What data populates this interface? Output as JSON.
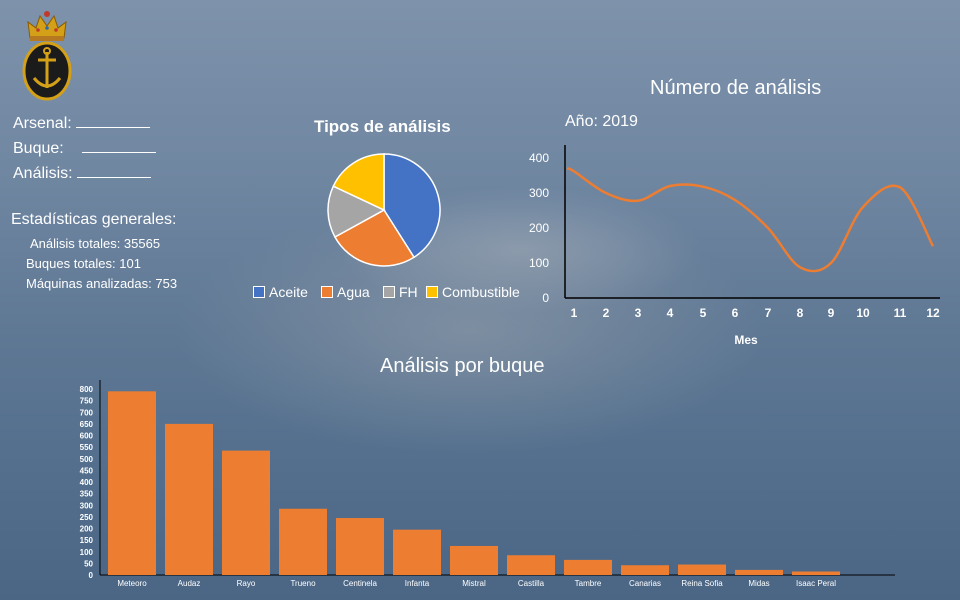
{
  "form": {
    "arsenal_label": "Arsenal:",
    "buque_label": "Buque:",
    "analisis_label": "Análisis:"
  },
  "stats": {
    "heading": "Estadísticas generales:",
    "total_analisis": "Análisis totales: 35565",
    "total_buques": "Buques totales: 101",
    "maquinas": "Máquinas analizadas: 753"
  },
  "colors": {
    "blue": "#4472C4",
    "orange": "#ED7D31",
    "gray": "#A5A5A5",
    "yellow": "#FFC000",
    "bar": "#ED7D31"
  },
  "chart_data": [
    {
      "type": "pie",
      "title": "Tipos de análisis",
      "categories": [
        "Aceite",
        "Agua",
        "FH",
        "Combustible"
      ],
      "values": [
        41,
        26,
        15,
        18
      ]
    },
    {
      "type": "line",
      "title": "Número de análisis",
      "subtitle": "Año: 2019",
      "xlabel": "Mes",
      "ylabel": "",
      "x": [
        1,
        2,
        3,
        4,
        5,
        6,
        7,
        8,
        9,
        10,
        11,
        12
      ],
      "series": [
        {
          "values": [
            362,
            300,
            278,
            320,
            318,
            280,
            200,
            88,
            100,
            260,
            316,
            148
          ]
        }
      ],
      "ylim": [
        0,
        400
      ],
      "yticks": [
        0,
        100,
        200,
        300,
        400
      ],
      "grid": false
    },
    {
      "type": "bar",
      "title": "Análisis por buque",
      "categories": [
        "Meteoro",
        "Audaz",
        "Rayo",
        "Trueno",
        "Centinela",
        "Infanta",
        "Mistral",
        "Castilla",
        "Tambre",
        "Canarias",
        "Reina Sofia",
        "Midas",
        "Isaac Peral"
      ],
      "values": [
        790,
        650,
        535,
        285,
        245,
        195,
        125,
        85,
        65,
        42,
        45,
        22,
        15
      ],
      "ylim": [
        0,
        800
      ],
      "yticks": [
        0,
        50,
        100,
        150,
        200,
        250,
        300,
        350,
        400,
        450,
        500,
        550,
        600,
        650,
        700,
        750,
        800
      ],
      "grid": false
    }
  ]
}
